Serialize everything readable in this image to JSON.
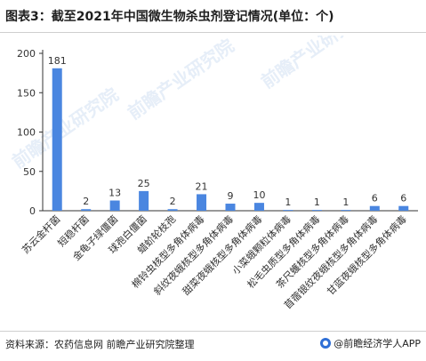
{
  "title": "图表3：截至2021年中国微生物杀虫剂登记情况(单位：个)",
  "source": "资料来源：农药信息网 前瞻产业研究院整理",
  "brand": "@前瞻经济学人APP",
  "watermark": "前瞻产业研究院",
  "colors": {
    "bar": "#4a86e0",
    "axis": "#333333",
    "text": "#333333"
  },
  "chart_data": {
    "type": "bar",
    "title": "图表3：截至2021年中国微生物杀虫剂登记情况(单位：个)",
    "xlabel": "",
    "ylabel": "",
    "ylim": [
      0,
      200
    ],
    "yticks": [
      0,
      50,
      100,
      150,
      200
    ],
    "grid": false,
    "legend": "none",
    "categories": [
      "苏云金杆菌",
      "短稳杆菌",
      "金龟子绿僵菌",
      "球孢白僵菌",
      "蜡蚧轮枝孢",
      "棉铃虫核型多角体病毒",
      "斜纹夜蛾核型多角体病毒",
      "甜菜夜蛾核型多角体病毒",
      "小菜蛾颗粒体病毒",
      "松毛虫质型多角体病毒",
      "茶尺蠖核型多角体病毒",
      "苜蓿银纹夜蛾核型多角体病毒",
      "甘蓝夜蛾核型多角体病毒"
    ],
    "values": [
      181,
      2,
      13,
      25,
      2,
      21,
      9,
      10,
      1,
      1,
      1,
      6,
      6
    ],
    "data_labels": [
      "181",
      "2",
      "13",
      "25",
      "2",
      "21",
      "9",
      "10",
      "1",
      "1",
      "1",
      "6",
      "6"
    ]
  }
}
